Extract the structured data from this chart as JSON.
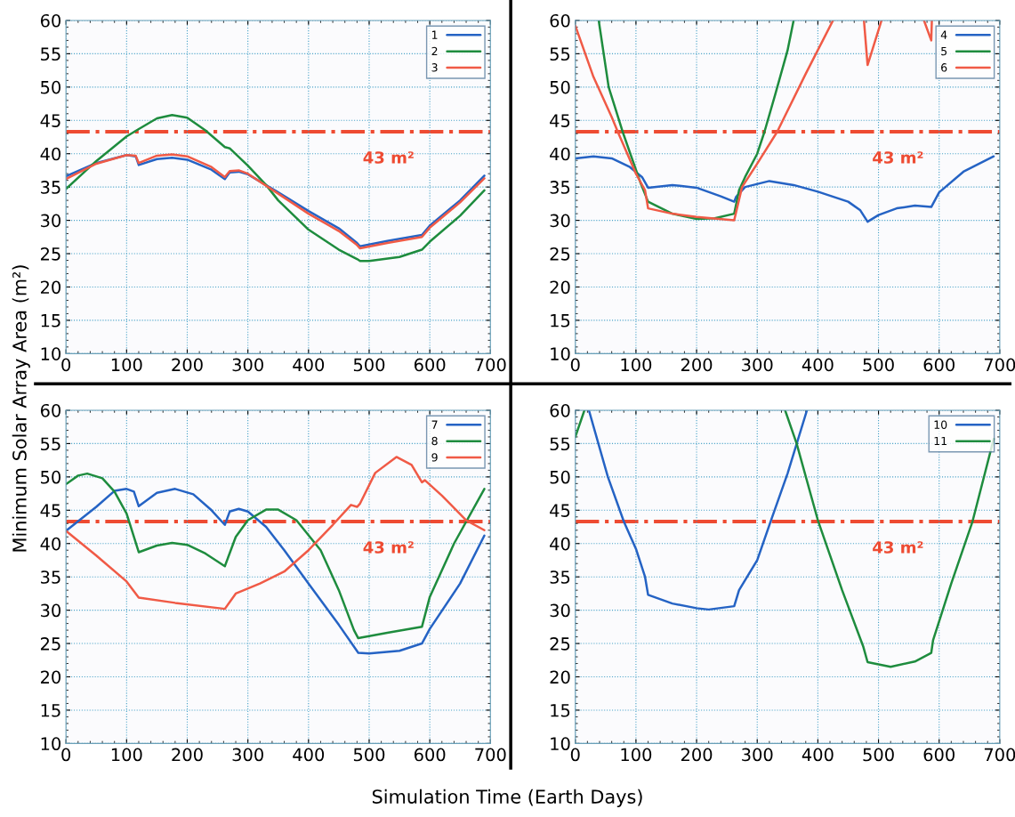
{
  "chart_data": [
    {
      "type": "line",
      "ylabel": "Minimum Solar Array Area (m²)",
      "xlim": [
        0,
        700
      ],
      "ylim": [
        10,
        60
      ],
      "xticks": [
        0,
        100,
        200,
        300,
        400,
        500,
        600,
        700
      ],
      "yticks": [
        10,
        15,
        20,
        25,
        30,
        35,
        40,
        45,
        50,
        55,
        60
      ],
      "grid": true,
      "legend": "top right",
      "ref_lines": [
        {
          "axis": "y",
          "value": 43.3,
          "label": "43 m²",
          "color": "#ee4b32",
          "line_style": "dashdot"
        }
      ],
      "series": [
        {
          "name": "1",
          "color": "#2563c4",
          "x": [
            0,
            50,
            100,
            115,
            120,
            150,
            175,
            200,
            240,
            262,
            270,
            285,
            300,
            350,
            400,
            450,
            480,
            485,
            530,
            587,
            600,
            650,
            690
          ],
          "values": [
            36.6,
            38.6,
            39.8,
            39.6,
            38.3,
            39.2,
            39.4,
            39.1,
            37.6,
            36.2,
            37.2,
            37.3,
            36.9,
            34.2,
            31.4,
            28.8,
            26.6,
            26.1,
            26.9,
            27.8,
            29.2,
            33.0,
            36.7
          ]
        },
        {
          "name": "2",
          "color": "#1e8c3e",
          "x": [
            0,
            50,
            100,
            120,
            150,
            175,
            200,
            230,
            262,
            270,
            300,
            330,
            350,
            400,
            450,
            480,
            485,
            500,
            550,
            587,
            600,
            650,
            690
          ],
          "values": [
            34.7,
            38.9,
            42.6,
            43.7,
            45.3,
            45.8,
            45.4,
            43.5,
            41.0,
            40.8,
            38.2,
            35.3,
            33.0,
            28.6,
            25.6,
            24.2,
            23.9,
            23.9,
            24.5,
            25.6,
            26.8,
            30.7,
            34.5
          ]
        },
        {
          "name": "3",
          "color": "#f05a46",
          "x": [
            0,
            50,
            100,
            115,
            120,
            150,
            175,
            200,
            240,
            262,
            270,
            285,
            300,
            350,
            400,
            450,
            480,
            485,
            530,
            587,
            600,
            650,
            690
          ],
          "values": [
            36.2,
            38.5,
            39.8,
            39.7,
            38.6,
            39.7,
            39.9,
            39.6,
            38.0,
            36.5,
            37.4,
            37.5,
            37.0,
            34.0,
            31.0,
            28.4,
            26.3,
            25.8,
            26.6,
            27.5,
            28.9,
            32.7,
            36.3
          ]
        }
      ]
    },
    {
      "type": "line",
      "xlim": [
        0,
        700
      ],
      "ylim": [
        10,
        60
      ],
      "xticks": [
        0,
        100,
        200,
        300,
        400,
        500,
        600,
        700
      ],
      "yticks": [
        10,
        15,
        20,
        25,
        30,
        35,
        40,
        45,
        50,
        55,
        60
      ],
      "grid": true,
      "legend": "top right",
      "ref_lines": [
        {
          "axis": "y",
          "value": 43.3,
          "label": "43 m²",
          "color": "#ee4b32",
          "line_style": "dashdot"
        }
      ],
      "series": [
        {
          "name": "4",
          "color": "#2563c4",
          "x": [
            0,
            30,
            60,
            90,
            110,
            120,
            160,
            200,
            240,
            262,
            265,
            280,
            320,
            360,
            400,
            450,
            470,
            482,
            500,
            530,
            560,
            587,
            600,
            640,
            690
          ],
          "values": [
            39.3,
            39.6,
            39.3,
            38.0,
            36.5,
            34.9,
            35.3,
            34.9,
            33.6,
            32.8,
            33.5,
            35.0,
            35.9,
            35.3,
            34.3,
            32.8,
            31.5,
            29.8,
            30.8,
            31.8,
            32.2,
            32.0,
            34.2,
            37.3,
            39.6
          ]
        },
        {
          "name": "5",
          "color": "#1e8c3e",
          "x": [
            38.6,
            55,
            78,
            108,
            120,
            160,
            200,
            230,
            262,
            270,
            280,
            300,
            312,
            330,
            350,
            360
          ],
          "values": [
            60,
            50,
            43.3,
            35.5,
            32.8,
            31.0,
            30.2,
            30.3,
            31.0,
            34.5,
            36.5,
            40.0,
            43.3,
            49.0,
            55.5,
            60
          ]
        },
        {
          "name": "6",
          "color": "#f05a46",
          "x": [
            0,
            30,
            60,
            70,
            100,
            115,
            120,
            160,
            200,
            262,
            275,
            300,
            333,
            380,
            425,
            450,
            476,
            482,
            505,
            540,
            575,
            587,
            588
          ],
          "values": [
            59.2,
            51.5,
            45.5,
            43.3,
            37.0,
            34.5,
            31.8,
            31.0,
            30.5,
            30.0,
            35.0,
            38.5,
            43.3,
            52.0,
            60,
            null,
            60,
            53.3,
            60,
            null,
            60,
            57.0,
            60
          ]
        }
      ]
    },
    {
      "type": "line",
      "xlim": [
        0,
        700
      ],
      "ylim": [
        10,
        60
      ],
      "xticks": [
        0,
        100,
        200,
        300,
        400,
        500,
        600,
        700
      ],
      "yticks": [
        10,
        15,
        20,
        25,
        30,
        35,
        40,
        45,
        50,
        55,
        60
      ],
      "grid": true,
      "legend": "top right",
      "ref_lines": [
        {
          "axis": "y",
          "value": 43.3,
          "label": "43 m²",
          "color": "#ee4b32",
          "line_style": "dashdot"
        }
      ],
      "series": [
        {
          "name": "7",
          "color": "#2563c4",
          "x": [
            0,
            50,
            80,
            100,
            112,
            120,
            150,
            180,
            210,
            240,
            262,
            270,
            285,
            300,
            330,
            360,
            400,
            450,
            482,
            500,
            550,
            587,
            600,
            650,
            690
          ],
          "values": [
            41.9,
            45.5,
            47.9,
            48.2,
            47.8,
            45.6,
            47.6,
            48.2,
            47.4,
            45.0,
            42.8,
            44.8,
            45.2,
            44.8,
            42.5,
            39.0,
            34.0,
            27.8,
            23.6,
            23.5,
            23.9,
            25.0,
            27.2,
            34.0,
            41.2
          ]
        },
        {
          "name": "8",
          "color": "#1e8c3e",
          "x": [
            0,
            20,
            35,
            60,
            80,
            100,
            120,
            150,
            175,
            200,
            230,
            262,
            280,
            300,
            330,
            350,
            380,
            420,
            450,
            475,
            482,
            530,
            587,
            600,
            640,
            690
          ],
          "values": [
            48.9,
            50.2,
            50.5,
            49.8,
            47.8,
            44.5,
            38.7,
            39.7,
            40.1,
            39.8,
            38.5,
            36.6,
            41.0,
            43.5,
            45.1,
            45.1,
            43.5,
            39.0,
            33.0,
            27.0,
            25.8,
            26.6,
            27.5,
            32.0,
            40.0,
            48.2
          ]
        },
        {
          "name": "9",
          "color": "#f05a46",
          "x": [
            0,
            50,
            100,
            120,
            180,
            262,
            280,
            320,
            360,
            400,
            440,
            470,
            480,
            485,
            510,
            545,
            570,
            587,
            592,
            620,
            660,
            690
          ],
          "values": [
            41.9,
            38.2,
            34.3,
            31.9,
            31.1,
            30.2,
            32.5,
            34.0,
            35.8,
            39.0,
            42.8,
            45.8,
            45.5,
            46.0,
            50.6,
            53.0,
            51.8,
            49.2,
            49.5,
            47.2,
            43.5,
            42.0
          ]
        }
      ]
    },
    {
      "type": "line",
      "xlabel": "Simulation Time (Earth Days)",
      "xlim": [
        0,
        700
      ],
      "ylim": [
        10,
        60
      ],
      "xticks": [
        0,
        100,
        200,
        300,
        400,
        500,
        600,
        700
      ],
      "yticks": [
        10,
        15,
        20,
        25,
        30,
        35,
        40,
        45,
        50,
        55,
        60
      ],
      "grid": true,
      "legend": "top right",
      "ref_lines": [
        {
          "axis": "y",
          "value": 43.3,
          "label": "43 m²",
          "color": "#ee4b32",
          "line_style": "dashdot"
        }
      ],
      "series": [
        {
          "name": "10",
          "color": "#2563c4",
          "x": [
            22.4,
            53.7,
            80,
            100,
            115,
            120,
            160,
            200,
            220,
            262,
            270,
            300,
            322,
            350,
            382
          ],
          "values": [
            60,
            50,
            43.3,
            39.2,
            35.0,
            32.3,
            31.0,
            30.3,
            30.1,
            30.6,
            33.0,
            37.5,
            43.3,
            50.5,
            60
          ]
        },
        {
          "name": "11",
          "color": "#1e8c3e",
          "x": [
            0,
            15,
            180,
            346,
            365,
            400,
            440,
            475,
            482,
            520,
            560,
            587,
            590,
            620,
            655,
            690
          ],
          "values": [
            56.0,
            60,
            null,
            60,
            55.0,
            43.5,
            33.0,
            24.5,
            22.2,
            21.5,
            22.3,
            23.6,
            25.5,
            34.0,
            43.3,
            55.7
          ]
        }
      ]
    }
  ]
}
